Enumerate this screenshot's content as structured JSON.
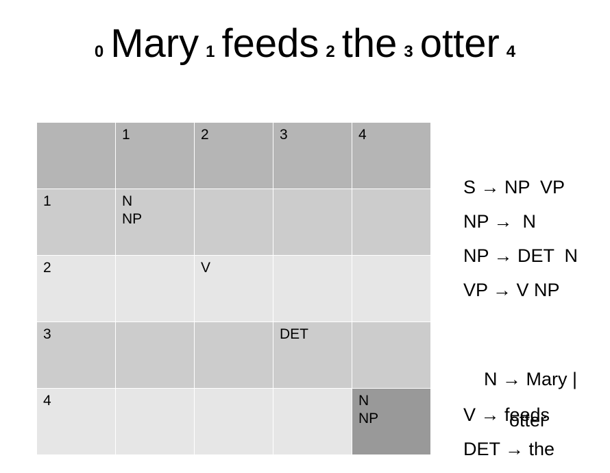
{
  "sentence": {
    "indices": [
      "0",
      "1",
      "2",
      "3",
      "4"
    ],
    "words": [
      "Mary",
      "feeds",
      "the",
      "otter"
    ]
  },
  "chart": {
    "col_headers": [
      "",
      "1",
      "2",
      "3",
      "4"
    ],
    "rows": [
      {
        "header": "1",
        "cells": [
          [
            "N",
            "NP"
          ],
          [],
          [],
          []
        ]
      },
      {
        "header": "2",
        "cells": [
          [],
          [
            "V"
          ],
          [],
          []
        ]
      },
      {
        "header": "3",
        "cells": [
          [],
          [],
          [
            "DET"
          ],
          []
        ]
      },
      {
        "header": "4",
        "cells": [
          [],
          [],
          [],
          [
            "N",
            "NP"
          ]
        ]
      }
    ]
  },
  "grammar": {
    "rules": [
      "S → NP  VP",
      "NP →  N",
      "NP → DET  N",
      "VP → V NP"
    ],
    "lexicon": [
      {
        "text": "N → Mary |",
        "cont": "otter"
      },
      {
        "text": "V → feeds"
      },
      {
        "text": "DET → the"
      }
    ]
  },
  "colors": {
    "header": "#b5b5b5",
    "row_dark": "#cccccc",
    "row_light": "#e6e6e6",
    "highlight": "#999999"
  }
}
